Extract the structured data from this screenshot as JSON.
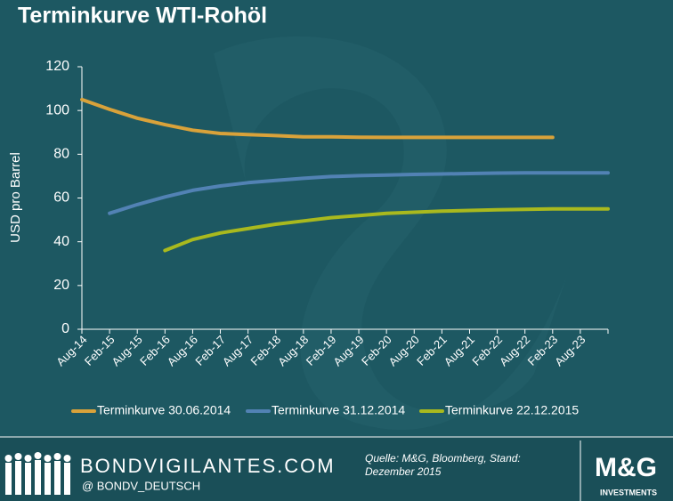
{
  "chart_data": {
    "type": "line",
    "title": "Terminkurve WTI-Rohöl",
    "y_label": "USD pro Barrel",
    "categories": [
      "Aug-14",
      "Feb-15",
      "Aug-15",
      "Feb-16",
      "Aug-16",
      "Feb-17",
      "Aug-17",
      "Feb-18",
      "Aug-18",
      "Feb-19",
      "Aug-19",
      "Feb-20",
      "Aug-20",
      "Feb-21",
      "Aug-21",
      "Feb-22",
      "Aug-22",
      "Feb-23",
      "Aug-23",
      null
    ],
    "series": [
      {
        "name": "Terminkurve 30.06.2014",
        "color": "#d9a23a",
        "values": [
          105,
          100.5,
          96.5,
          93.5,
          91,
          89.5,
          89,
          88.5,
          88,
          88,
          87.8,
          87.7,
          87.7,
          87.7,
          87.7,
          87.7,
          87.7,
          87.7,
          null,
          null
        ]
      },
      {
        "name": "Terminkurve 31.12.2014",
        "color": "#5282b4",
        "values": [
          null,
          53,
          57,
          60.5,
          63.5,
          65.5,
          67,
          68,
          69,
          69.8,
          70.2,
          70.5,
          70.8,
          71,
          71.2,
          71.4,
          71.5,
          71.5,
          71.5,
          71.5
        ]
      },
      {
        "name": "Terminkurve 22.12.2015",
        "color": "#a9b91e",
        "values": [
          null,
          null,
          null,
          36,
          41,
          44,
          46,
          48,
          49.5,
          51,
          52,
          53,
          53.5,
          54,
          54.3,
          54.6,
          54.8,
          55,
          55,
          55
        ]
      }
    ],
    "ylim": [
      0,
      120
    ],
    "yticks": [
      0,
      20,
      40,
      60,
      80,
      100,
      120
    ],
    "grid": false,
    "legend": "bottom"
  },
  "footer": {
    "site": "BONDVIGILANTES.COM",
    "handle": "@  BONDV_DEUTSCH",
    "source": "Quelle: M&G, Bloomberg, Stand: Dezember 2015",
    "logo": "M&G",
    "logo_sub": "INVESTMENTS"
  }
}
